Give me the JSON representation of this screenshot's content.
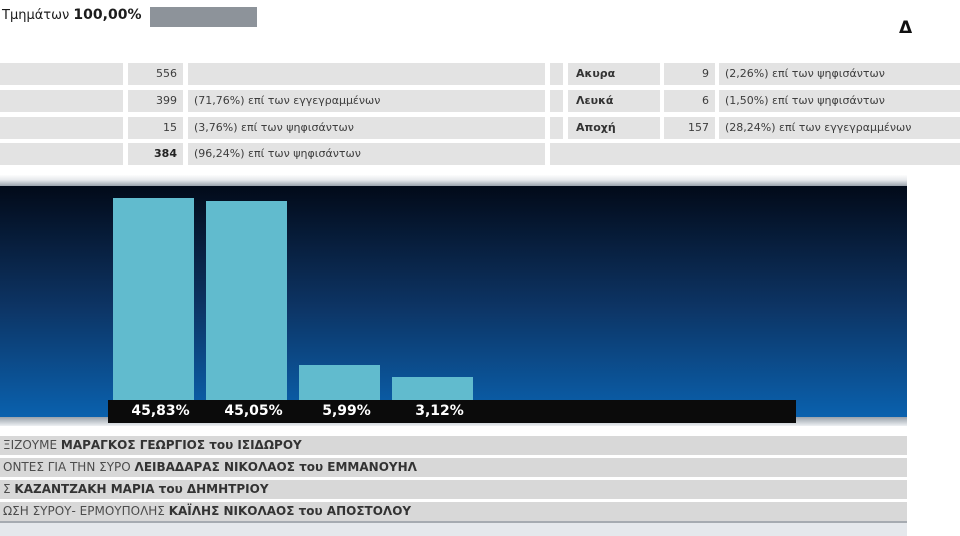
{
  "header": {
    "progress_label": "Τμημάτων",
    "progress_value": "100,00%",
    "partial_letter": "Δ"
  },
  "summary": {
    "left_rows": [
      {
        "label": "",
        "value": "556",
        "note": ""
      },
      {
        "label": "",
        "value": "399",
        "note": "(71,76%) επί των εγγεγραμμένων"
      },
      {
        "label": "",
        "value": "15",
        "note": "(3,76%) επί των ψηφισάντων"
      },
      {
        "label": "",
        "value": "384",
        "note": "(96,24%) επί των ψηφισάντων"
      }
    ],
    "right_rows": [
      {
        "label": "Ακυρα",
        "value": "9",
        "note": "(2,26%) επί των ψηφισάντων"
      },
      {
        "label": "Λευκά",
        "value": "6",
        "note": "(1,50%) επί των ψηφισάντων"
      },
      {
        "label": "Αποχή",
        "value": "157",
        "note": "(28,24%) επί των εγγεγραμμένων"
      }
    ]
  },
  "chart_data": {
    "type": "bar",
    "categories": [
      "ΜΑΡΑΓΚΟΣ ΓΕΩΡΓΙΟΣ",
      "ΛΕΙΒΑΔΑΡΑΣ ΝΙΚΟΛΑΟΣ",
      "ΚΑΖΑΝΤΖΑΚΗ ΜΑΡΙΑ",
      "ΚΑΪΛΗΣ ΝΙΚΟΛΑΟΣ"
    ],
    "values": [
      45.83,
      45.05,
      5.99,
      3.12
    ],
    "value_labels": [
      "45,83%",
      "45,05%",
      "5,99%",
      "3,12%"
    ],
    "title": "",
    "xlabel": "",
    "ylabel": "",
    "legend": "none",
    "grid": false,
    "colors": {
      "bar": "#61bbce",
      "background_top": "#020a19",
      "background_bottom": "#0a61ae",
      "label_strip": "#0b0b0b",
      "label_text": "#ffffff"
    }
  },
  "results": [
    {
      "party": "ΞΙΖΟΥΜΕ ",
      "candidate": "ΜΑΡΑΓΚΟΣ ΓΕΩΡΓΙΟΣ του ΙΣΙΔΩΡΟΥ"
    },
    {
      "party": "ΟΝΤΕΣ ΓΙΑ ΤΗΝ ΣΥΡΟ ",
      "candidate": "ΛΕΙΒΑΔΑΡΑΣ ΝΙΚΟΛΑΟΣ του ΕΜΜΑΝΟΥΗΛ"
    },
    {
      "party": "Σ ",
      "candidate": "ΚΑΖΑΝΤΖΑΚΗ ΜΑΡΙΑ του ΔΗΜΗΤΡΙΟΥ"
    },
    {
      "party": "ΩΣΗ ΣΥΡΟΥ- ΕΡΜΟΥΠΟΛΗΣ ",
      "candidate": "ΚΑΪΛΗΣ ΝΙΚΟΛΑΟΣ του ΑΠΟΣΤΟΛΟΥ"
    }
  ]
}
